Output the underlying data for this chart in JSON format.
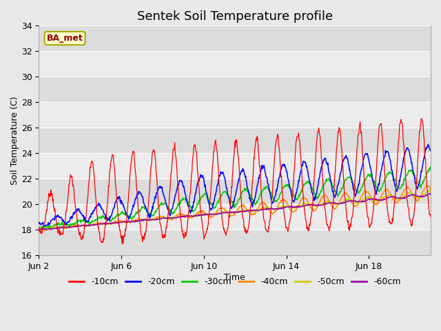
{
  "title": "Sentek Soil Temperature profile",
  "xlabel": "Time",
  "ylabel": "Soil Temperature (C)",
  "ylim": [
    16,
    34
  ],
  "xtick_positions": [
    0,
    4,
    8,
    12,
    16
  ],
  "xtick_labels": [
    "Jun 2",
    "Jun 6",
    "Jun 10",
    "Jun 14",
    "Jun 18"
  ],
  "ytick_positions": [
    16,
    18,
    20,
    22,
    24,
    26,
    28,
    30,
    32,
    34
  ],
  "annotation_text": "BA_met",
  "fig_bg_color": "#e8e8e8",
  "plot_bg_color": "#f0f0f0",
  "band_light": "#dcdcdc",
  "band_dark": "#ebebeb",
  "colors": {
    "-10cm": "#ff0000",
    "-20cm": "#0000ff",
    "-30cm": "#00cc00",
    "-40cm": "#ff8800",
    "-50cm": "#cccc00",
    "-60cm": "#9900aa"
  },
  "legend_labels": [
    "-10cm",
    "-20cm",
    "-30cm",
    "-40cm",
    "-50cm",
    "-60cm"
  ],
  "n_days": 19,
  "pts_per_day": 48
}
